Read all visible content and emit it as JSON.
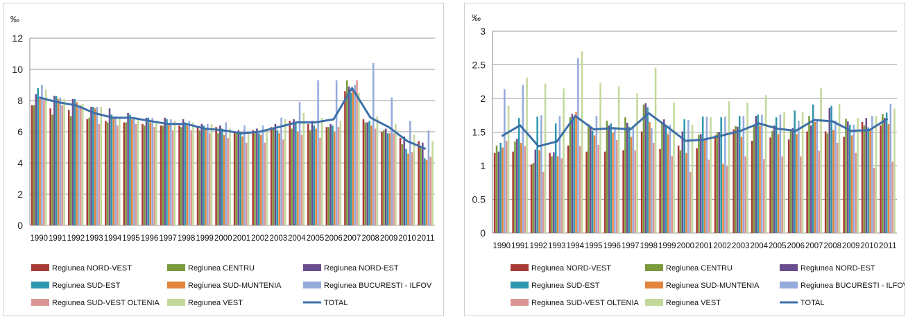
{
  "series_meta": [
    {
      "name": "Regiunea NORD-VEST",
      "color": "#a83a36"
    },
    {
      "name": "Regiunea CENTRU",
      "color": "#7a9a3c"
    },
    {
      "name": "Regiunea NORD-EST",
      "color": "#6a4d8e"
    },
    {
      "name": "Regiunea SUD-EST",
      "color": "#2f97ad"
    },
    {
      "name": "Regiunea SUD-MUNTENIA",
      "color": "#e2843c"
    },
    {
      "name": "Regiunea BUCURESTI - ILFOV",
      "color": "#95abdb"
    },
    {
      "name": "Regiunea SUD-VEST OLTENIA",
      "color": "#dc9594"
    },
    {
      "name": "Regiunea VEST",
      "color": "#c3d99b"
    },
    {
      "name": "TOTAL",
      "color": "#3d6fa8"
    }
  ],
  "chart_data": [
    {
      "type": "bar",
      "unit_label": "‰",
      "ylim": [
        0,
        12
      ],
      "yticks": [
        0,
        2,
        4,
        6,
        8,
        10,
        12
      ],
      "grid": true,
      "legend_position": "bottom",
      "categories": [
        "1990",
        "1991",
        "1992",
        "1993",
        "1994",
        "1995",
        "1996",
        "1997",
        "1998",
        "1999",
        "2000",
        "2001",
        "2002",
        "2003",
        "2004",
        "2005",
        "2006",
        "2007",
        "2008",
        "2009",
        "2010",
        "2011"
      ],
      "series": [
        {
          "name": "Regiunea NORD-VEST",
          "type": "bar",
          "values": [
            7.7,
            7.5,
            7.4,
            6.8,
            6.7,
            6.6,
            6.5,
            6.4,
            6.4,
            6.3,
            6.3,
            6.0,
            6.1,
            6.3,
            6.7,
            6.5,
            6.3,
            8.6,
            6.8,
            6.0,
            5.6,
            5.4
          ]
        },
        {
          "name": "Regiunea CENTRU",
          "type": "bar",
          "values": [
            7.7,
            7.1,
            7.0,
            6.9,
            6.6,
            6.6,
            6.4,
            6.4,
            6.3,
            6.1,
            5.9,
            5.9,
            6.0,
            6.2,
            6.2,
            6.1,
            6.3,
            9.3,
            6.6,
            6.1,
            5.2,
            5.0
          ]
        },
        {
          "name": "Regiunea NORD-EST",
          "type": "bar",
          "values": [
            8.4,
            8.3,
            8.1,
            7.6,
            7.5,
            7.2,
            6.9,
            6.9,
            6.8,
            6.5,
            6.4,
            6.1,
            6.2,
            6.5,
            6.8,
            6.7,
            6.5,
            8.9,
            6.6,
            6.2,
            5.7,
            5.3
          ]
        },
        {
          "name": "Regiunea SUD-EST",
          "type": "bar",
          "values": [
            8.8,
            8.3,
            8.1,
            7.6,
            7.1,
            7.1,
            6.9,
            6.8,
            6.6,
            6.4,
            6.2,
            6.0,
            5.9,
            6.1,
            6.6,
            6.4,
            6.4,
            8.5,
            6.7,
            5.9,
            4.9,
            4.3
          ]
        },
        {
          "name": "Regiunea SUD-MUNTENIA",
          "type": "bar",
          "values": [
            8.2,
            8.1,
            7.9,
            7.5,
            6.9,
            6.8,
            6.6,
            6.5,
            6.4,
            6.2,
            5.8,
            5.7,
            5.8,
            5.9,
            6.0,
            6.2,
            6.0,
            8.7,
            6.4,
            5.9,
            4.6,
            4.2
          ]
        },
        {
          "name": "Regiunea BUCURESTI - ILFOV",
          "type": "bar",
          "values": [
            9.0,
            8.2,
            7.6,
            7.6,
            7.0,
            6.9,
            6.9,
            6.8,
            6.7,
            6.5,
            6.6,
            6.4,
            6.4,
            6.9,
            7.9,
            9.3,
            9.3,
            9.0,
            10.4,
            8.2,
            6.7,
            6.1
          ]
        },
        {
          "name": "Regiunea SUD-VEST OLTENIA",
          "type": "bar",
          "values": [
            8.0,
            7.7,
            7.7,
            6.5,
            6.4,
            6.5,
            6.3,
            6.1,
            6.1,
            5.9,
            5.6,
            5.3,
            5.3,
            5.5,
            5.8,
            5.6,
            6.3,
            9.3,
            6.2,
            5.9,
            4.7,
            4.4
          ]
        },
        {
          "name": "Regiunea VEST",
          "type": "bar",
          "values": [
            8.7,
            8.1,
            7.8,
            7.6,
            6.9,
            6.9,
            6.7,
            6.7,
            6.6,
            6.5,
            6.2,
            6.0,
            6.2,
            6.8,
            7.2,
            6.9,
            6.7,
            8.5,
            7.0,
            6.5,
            5.8,
            5.4
          ]
        },
        {
          "name": "TOTAL",
          "type": "line",
          "values": [
            8.2,
            7.9,
            7.7,
            7.2,
            6.9,
            6.9,
            6.7,
            6.5,
            6.5,
            6.2,
            6.1,
            5.9,
            6.0,
            6.3,
            6.6,
            6.6,
            6.8,
            8.8,
            6.9,
            6.3,
            5.4,
            4.9
          ]
        }
      ]
    },
    {
      "type": "bar",
      "unit_label": "‰",
      "ylim": [
        0,
        3
      ],
      "yticks": [
        0,
        0.5,
        1,
        1.5,
        2,
        2.5,
        3
      ],
      "grid": true,
      "legend_position": "bottom",
      "categories": [
        "1990",
        "1991",
        "1992",
        "1993",
        "1994",
        "1995",
        "1996",
        "1997",
        "1998",
        "1999",
        "2000",
        "2001",
        "2002",
        "2003",
        "2004",
        "2005",
        "2006",
        "2007",
        "2008",
        "2009",
        "2010",
        "2011"
      ],
      "series": [
        {
          "name": "Regiunea NORD-VEST",
          "type": "bar",
          "values": [
            1.19,
            1.21,
            1.02,
            1.19,
            1.3,
            1.21,
            1.21,
            1.23,
            1.51,
            1.25,
            1.3,
            1.26,
            1.45,
            1.54,
            1.37,
            1.42,
            1.39,
            1.51,
            1.51,
            1.43,
            1.65,
            1.6
          ]
        },
        {
          "name": "Regiunea CENTRU",
          "type": "bar",
          "values": [
            1.3,
            1.36,
            1.04,
            1.14,
            1.72,
            1.62,
            1.67,
            1.72,
            1.91,
            1.64,
            1.23,
            1.46,
            1.49,
            1.59,
            1.61,
            1.52,
            1.52,
            1.74,
            1.48,
            1.7,
            1.6,
            1.77
          ]
        },
        {
          "name": "Regiunea NORD-EST",
          "type": "bar",
          "values": [
            1.21,
            1.4,
            1.24,
            1.2,
            1.77,
            1.58,
            1.6,
            1.64,
            1.93,
            1.69,
            1.51,
            1.47,
            1.5,
            1.58,
            1.74,
            1.6,
            1.56,
            1.6,
            1.86,
            1.66,
            1.71,
            1.71
          ]
        },
        {
          "name": "Regiunea SUD-EST",
          "type": "bar",
          "values": [
            1.34,
            1.71,
            1.73,
            1.63,
            1.72,
            1.52,
            1.63,
            1.58,
            1.87,
            1.59,
            1.69,
            1.73,
            1.72,
            1.74,
            1.76,
            1.72,
            1.82,
            1.91,
            1.89,
            1.61,
            1.57,
            1.79
          ]
        },
        {
          "name": "Regiunea SUD-MUNTENIA",
          "type": "bar",
          "values": [
            1.27,
            1.34,
            1.23,
            1.14,
            1.8,
            1.45,
            1.49,
            1.43,
            1.65,
            1.47,
            1.19,
            1.4,
            1.03,
            1.43,
            1.6,
            1.47,
            1.47,
            1.65,
            1.53,
            1.45,
            1.53,
            1.62
          ]
        },
        {
          "name": "Regiunea BUCURESTI - ILFOV",
          "type": "bar",
          "values": [
            2.14,
            2.2,
            1.75,
            1.74,
            2.6,
            1.74,
            1.56,
            1.56,
            1.56,
            1.61,
            1.68,
            1.73,
            1.73,
            1.74,
            1.76,
            1.76,
            1.67,
            1.69,
            1.67,
            1.61,
            1.74,
            1.92
          ]
        },
        {
          "name": "Regiunea SUD-VEST OLTENIA",
          "type": "bar",
          "values": [
            1.37,
            1.29,
            0.91,
            1.11,
            1.29,
            1.31,
            1.38,
            1.23,
            1.34,
            1.14,
            0.91,
            1.09,
            0.99,
            1.14,
            1.1,
            1.14,
            1.14,
            1.22,
            1.34,
            1.19,
            0.97,
            1.06
          ]
        },
        {
          "name": "Regiunea VEST",
          "type": "bar",
          "values": [
            1.89,
            2.31,
            2.22,
            2.15,
            2.7,
            2.23,
            2.18,
            2.08,
            2.46,
            1.94,
            1.61,
            1.72,
            1.96,
            1.94,
            2.05,
            1.8,
            1.8,
            2.15,
            1.92,
            1.71,
            1.74,
            1.85
          ]
        },
        {
          "name": "TOTAL",
          "type": "line",
          "values": [
            1.44,
            1.6,
            1.29,
            1.36,
            1.74,
            1.54,
            1.56,
            1.54,
            1.78,
            1.58,
            1.37,
            1.39,
            1.45,
            1.52,
            1.63,
            1.55,
            1.52,
            1.68,
            1.66,
            1.52,
            1.53,
            1.7
          ]
        }
      ]
    }
  ]
}
